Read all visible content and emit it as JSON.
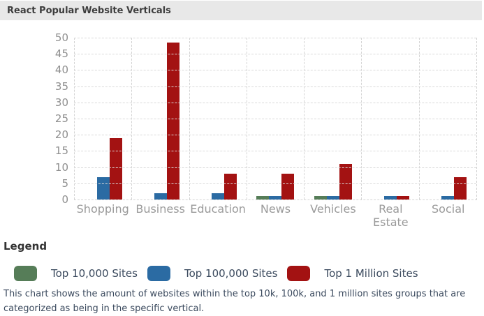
{
  "title_bar": {
    "title": "React Popular Website Verticals"
  },
  "chart_data": {
    "type": "bar",
    "title": "React Popular Website Verticals",
    "categories": [
      "Shopping",
      "Business",
      "Education",
      "News",
      "Vehicles",
      "Real Estate",
      "Social"
    ],
    "series": [
      {
        "name": "Top 10,000 Sites",
        "color": "#567d58",
        "values": [
          0,
          0,
          0,
          1,
          1,
          0,
          0
        ]
      },
      {
        "name": "Top 100,000 Sites",
        "color": "#2b6ba3",
        "values": [
          7,
          2,
          2,
          1,
          1,
          1,
          1
        ]
      },
      {
        "name": "Top 1 Million Sites",
        "color": "#a31212",
        "values": [
          19,
          48.5,
          8,
          8,
          11,
          1,
          7
        ]
      }
    ],
    "xlabel": "",
    "ylabel": "",
    "ylim": [
      0,
      50
    ],
    "ytick_step": 5,
    "grid": "dashed",
    "legend_position": "bottom"
  },
  "legend": {
    "heading": "Legend",
    "items": [
      {
        "label": "Top 10,000 Sites",
        "color": "#567d58"
      },
      {
        "label": "Top 100,000 Sites",
        "color": "#2b6ba3"
      },
      {
        "label": "Top 1 Million Sites",
        "color": "#a31212"
      }
    ],
    "caption": "This chart shows the amount of websites within the top 10k, 100k, and 1 million sites groups that are categorized as being in the specific vertical."
  }
}
